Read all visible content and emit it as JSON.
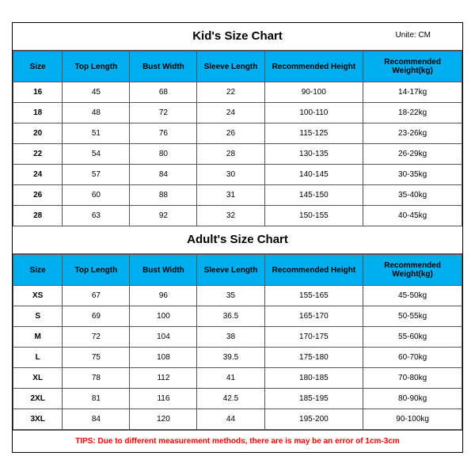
{
  "kids": {
    "title": "Kid's Size Chart",
    "unit": "Unite: CM",
    "columns": [
      "Size",
      "Top Length",
      "Bust Width",
      "Sleeve Length",
      "Recommended Height",
      "Recommended Weight(kg)"
    ],
    "rows": [
      [
        "16",
        "45",
        "68",
        "22",
        "90-100",
        "14-17kg"
      ],
      [
        "18",
        "48",
        "72",
        "24",
        "100-110",
        "18-22kg"
      ],
      [
        "20",
        "51",
        "76",
        "26",
        "115-125",
        "23-26kg"
      ],
      [
        "22",
        "54",
        "80",
        "28",
        "130-135",
        "26-29kg"
      ],
      [
        "24",
        "57",
        "84",
        "30",
        "140-145",
        "30-35kg"
      ],
      [
        "26",
        "60",
        "88",
        "31",
        "145-150",
        "35-40kg"
      ],
      [
        "28",
        "63",
        "92",
        "32",
        "150-155",
        "40-45kg"
      ]
    ]
  },
  "adults": {
    "title": "Adult's Size Chart",
    "columns": [
      "Size",
      "Top Length",
      "Bust Width",
      "Sleeve Length",
      "Recommended Height",
      "Recommended Weight(kg)"
    ],
    "rows": [
      [
        "XS",
        "67",
        "96",
        "35",
        "155-165",
        "45-50kg"
      ],
      [
        "S",
        "69",
        "100",
        "36.5",
        "165-170",
        "50-55kg"
      ],
      [
        "M",
        "72",
        "104",
        "38",
        "170-175",
        "55-60kg"
      ],
      [
        "L",
        "75",
        "108",
        "39.5",
        "175-180",
        "60-70kg"
      ],
      [
        "XL",
        "78",
        "112",
        "41",
        "180-185",
        "70-80kg"
      ],
      [
        "2XL",
        "81",
        "116",
        "42.5",
        "185-195",
        "80-90kg"
      ],
      [
        "3XL",
        "84",
        "120",
        "44",
        "195-200",
        "90-100kg"
      ]
    ]
  },
  "tips": "TIPS: Due to different measurement methods, there are is may be an error of 1cm-3cm",
  "styling": {
    "header_bg": "#00aeef",
    "border_color": "#555555",
    "tips_color": "#ff0000",
    "font_family": "Arial",
    "col_widths_pct": [
      11,
      15,
      15,
      15,
      22,
      22
    ]
  }
}
